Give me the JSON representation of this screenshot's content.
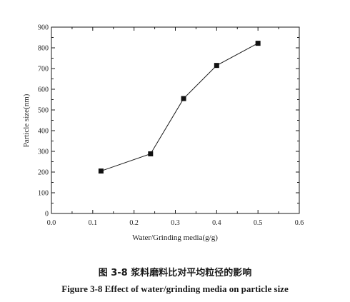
{
  "chart_data": {
    "type": "line",
    "title": "",
    "xlabel": "Water/Grinding media(g/g)",
    "ylabel": "Particle size(nm)",
    "xlim": [
      0.0,
      0.6
    ],
    "ylim": [
      0,
      900
    ],
    "xticks": [
      "0.0",
      "0.1",
      "0.2",
      "0.3",
      "0.4",
      "0.5",
      "0.6"
    ],
    "yticks": [
      "0",
      "100",
      "200",
      "300",
      "400",
      "500",
      "600",
      "700",
      "800",
      "900"
    ],
    "grid": false,
    "marker": "square",
    "series": [
      {
        "x": [
          0.12,
          0.24,
          0.32,
          0.4,
          0.5
        ],
        "y": [
          205,
          288,
          555,
          715,
          822
        ]
      }
    ]
  },
  "captions": {
    "chinese": "图 3-8 浆料磨料比对平均粒径的影响",
    "english": "Figure 3-8 Effect of water/grinding media on particle size"
  },
  "colors": {
    "line": "#1a1a1a",
    "marker": "#111111",
    "axis": "#1a1a1a"
  }
}
